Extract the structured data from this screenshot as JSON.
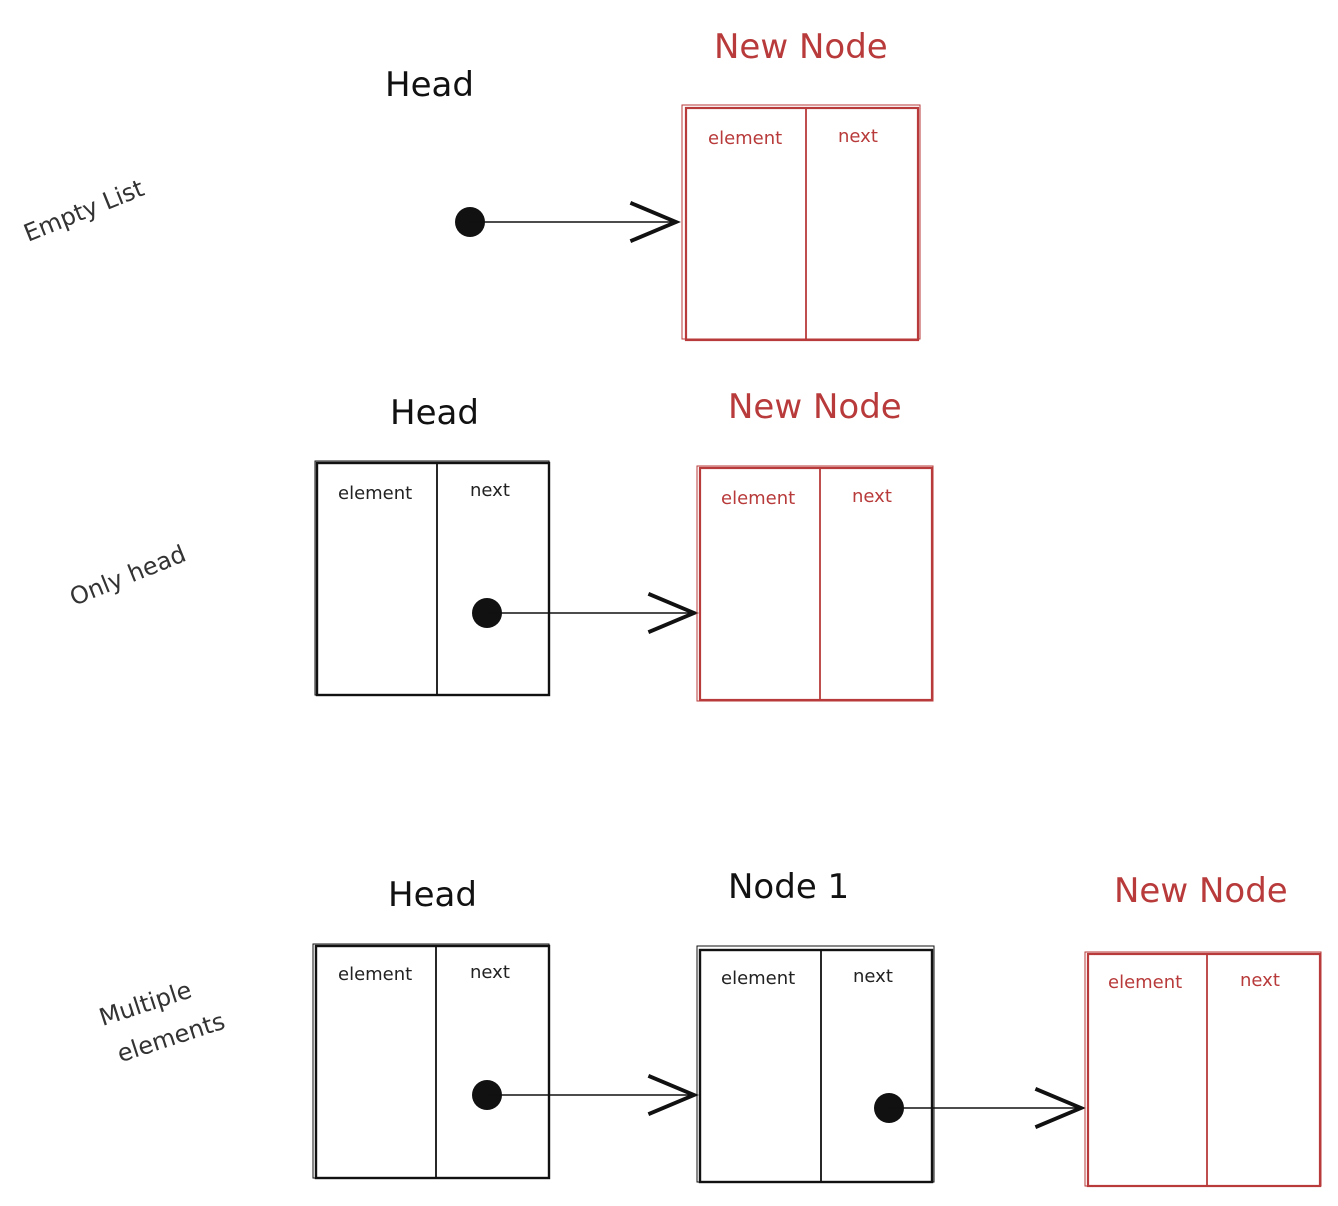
{
  "colors": {
    "ink": "#111111",
    "new_node": "#b83a3a",
    "background": "#ffffff"
  },
  "field_labels": {
    "element": "element",
    "next": "next"
  },
  "scenarios": [
    {
      "label": "Empty List",
      "head_label": "Head",
      "new_node_label": "New Node"
    },
    {
      "label": "Only head",
      "head_label": "Head",
      "new_node_label": "New Node"
    },
    {
      "label": "Multiple elements",
      "label_lines": [
        "Multiple",
        "elements"
      ],
      "head_label": "Head",
      "node1_label": "Node 1",
      "new_node_label": "New Node"
    }
  ]
}
